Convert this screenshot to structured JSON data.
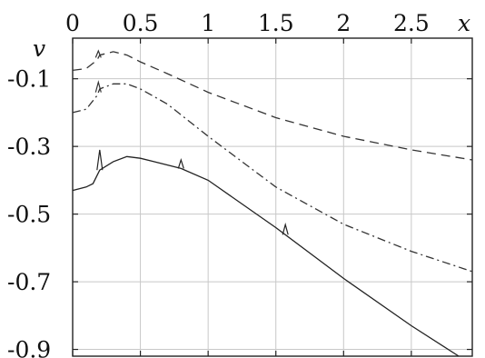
{
  "chart_data": {
    "type": "line",
    "title": "",
    "xlabel": "x",
    "ylabel": "v",
    "xlim": [
      0,
      2.95
    ],
    "ylim": [
      -0.92,
      0.02
    ],
    "x_ticks": [
      0,
      0.5,
      1,
      1.5,
      2,
      2.5
    ],
    "x_tick_labels": [
      "0",
      "0.5",
      "1",
      "1.5",
      "2",
      "2.5"
    ],
    "y_ticks": [
      -0.1,
      -0.3,
      -0.5,
      -0.7,
      -0.9
    ],
    "y_tick_labels": [
      "-0.1",
      "-0.3",
      "-0.5",
      "-0.7",
      "-0.9"
    ],
    "grid": true,
    "legend": "none",
    "series": [
      {
        "style": "dashed",
        "color": "#333333",
        "x": [
          0,
          0.1,
          0.18,
          0.2,
          0.25,
          0.3,
          0.4,
          0.5,
          0.7,
          1.0,
          1.5,
          2.0,
          2.5,
          2.95
        ],
        "y": [
          -0.075,
          -0.07,
          -0.045,
          -0.03,
          -0.025,
          -0.02,
          -0.03,
          -0.05,
          -0.085,
          -0.14,
          -0.215,
          -0.27,
          -0.31,
          -0.34
        ]
      },
      {
        "style": "dashdot",
        "color": "#333333",
        "x": [
          0,
          0.1,
          0.18,
          0.2,
          0.3,
          0.4,
          0.5,
          0.7,
          1.0,
          1.5,
          2.0,
          2.5,
          2.95
        ],
        "y": [
          -0.2,
          -0.19,
          -0.15,
          -0.13,
          -0.115,
          -0.115,
          -0.13,
          -0.175,
          -0.27,
          -0.42,
          -0.53,
          -0.61,
          -0.67
        ]
      },
      {
        "style": "solid",
        "color": "#222222",
        "x": [
          0,
          0.1,
          0.15,
          0.2,
          0.3,
          0.4,
          0.5,
          0.6,
          0.8,
          1.0,
          1.5,
          2.0,
          2.5,
          2.85
        ],
        "y": [
          -0.43,
          -0.42,
          -0.41,
          -0.37,
          -0.345,
          -0.33,
          -0.335,
          -0.345,
          -0.365,
          -0.4,
          -0.54,
          -0.69,
          -0.83,
          -0.92
        ]
      }
    ],
    "spikes": [
      {
        "series": 2,
        "x": 0.2,
        "dy": 0.06
      },
      {
        "series": 1,
        "x": 0.19,
        "dy": 0.03
      },
      {
        "series": 0,
        "x": 0.19,
        "dy": 0.02
      },
      {
        "series": 2,
        "x": 0.8,
        "dy": 0.025
      },
      {
        "series": 2,
        "x": 1.57,
        "dy": 0.03
      }
    ]
  }
}
